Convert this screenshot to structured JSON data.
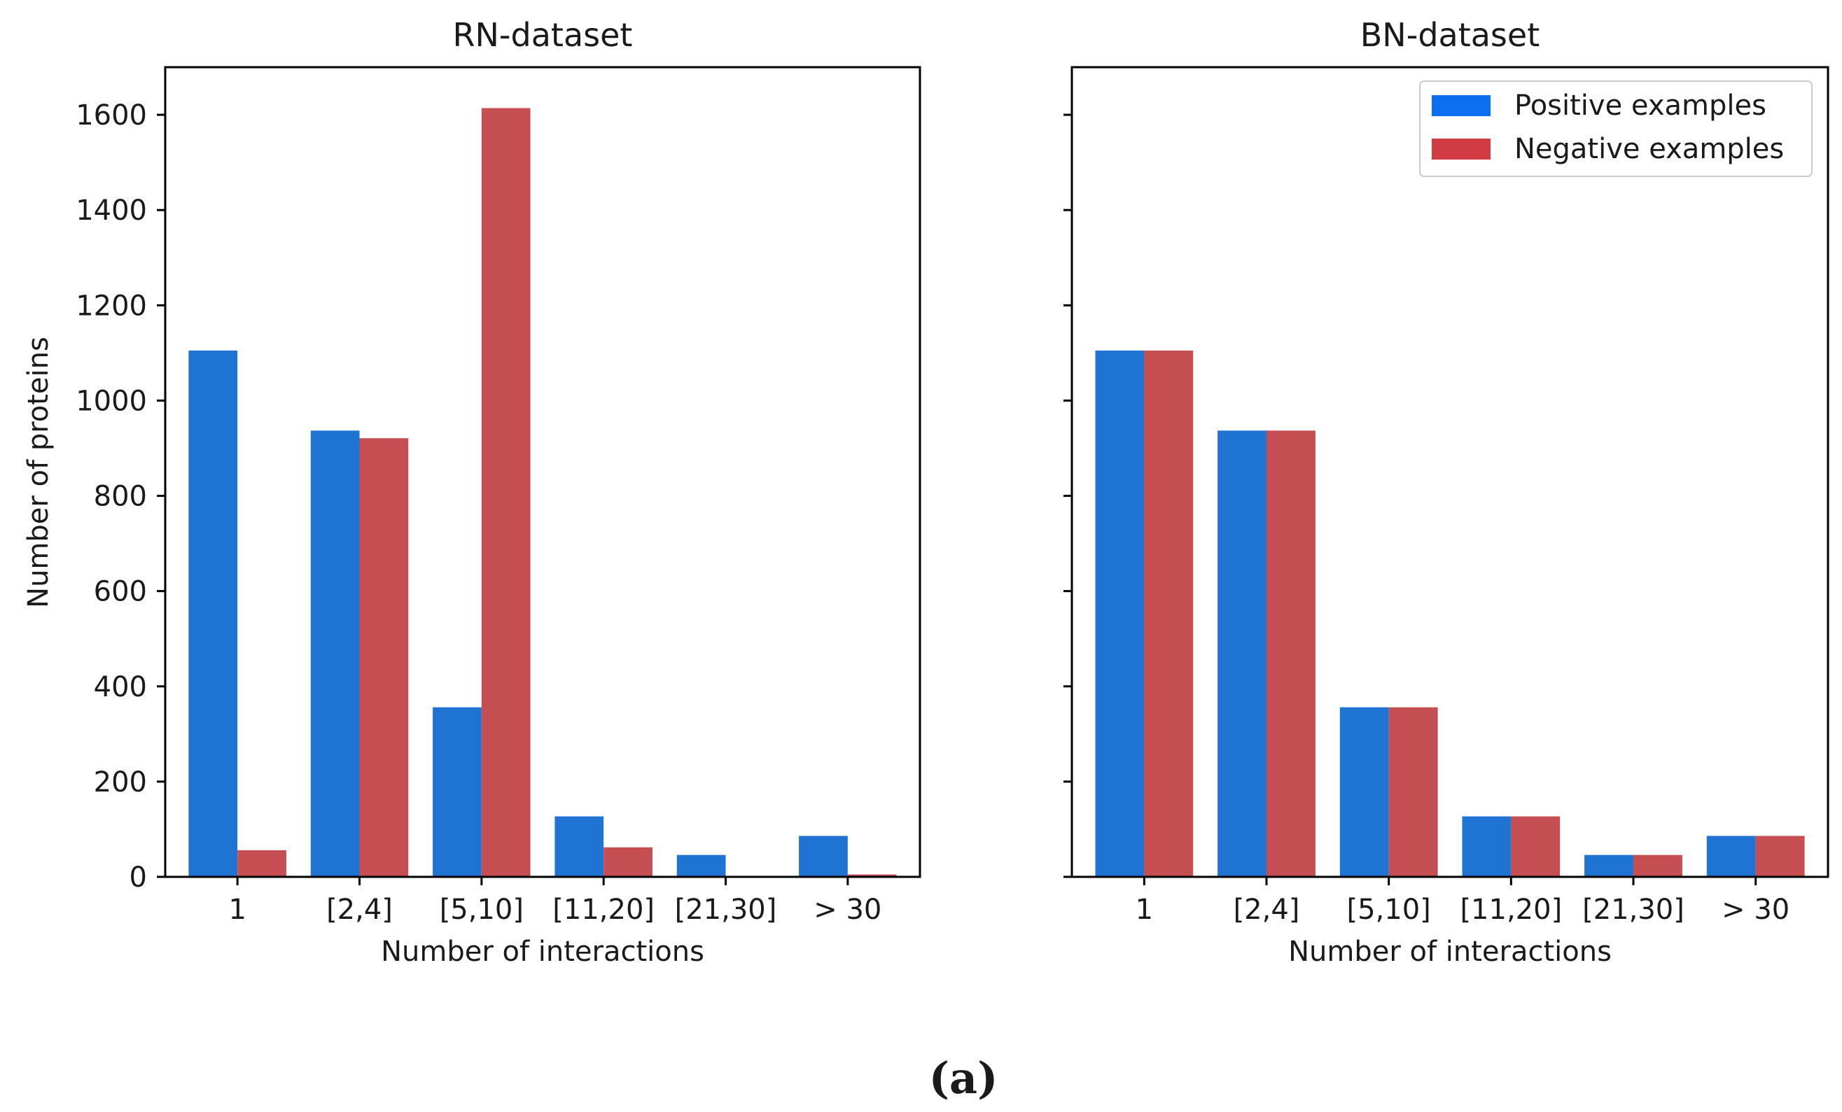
{
  "figure_label": "(a)",
  "legend": {
    "positive": "Positive examples",
    "negative": "Negative examples"
  },
  "colors": {
    "positive": "#1f73d2",
    "negative": "#c44e52",
    "legend_positive": "#0b6ff0",
    "legend_negative": "#d13b43"
  },
  "chart_data": [
    {
      "type": "bar",
      "title": "RN-dataset",
      "xlabel": "Number of interactions",
      "ylabel": "Number of proteins",
      "categories": [
        "1",
        "[2,4]",
        "[5,10]",
        "[11,20]",
        "[21,30]",
        "> 30"
      ],
      "series": [
        {
          "name": "Positive examples",
          "values": [
            1105,
            937,
            356,
            127,
            46,
            86
          ]
        },
        {
          "name": "Negative examples",
          "values": [
            56,
            921,
            1614,
            62,
            0,
            5
          ]
        }
      ],
      "ylim": [
        0,
        1700
      ],
      "yticks": [
        0,
        200,
        400,
        600,
        800,
        1000,
        1200,
        1400,
        1600
      ],
      "show_ytick_labels": true,
      "legend": false
    },
    {
      "type": "bar",
      "title": "BN-dataset",
      "xlabel": "Number of interactions",
      "ylabel": "",
      "categories": [
        "1",
        "[2,4]",
        "[5,10]",
        "[11,20]",
        "[21,30]",
        "> 30"
      ],
      "series": [
        {
          "name": "Positive examples",
          "values": [
            1105,
            937,
            356,
            127,
            46,
            86
          ]
        },
        {
          "name": "Negative examples",
          "values": [
            1105,
            937,
            356,
            127,
            46,
            86
          ]
        }
      ],
      "ylim": [
        0,
        1700
      ],
      "yticks": [
        0,
        200,
        400,
        600,
        800,
        1000,
        1200,
        1400,
        1600
      ],
      "show_ytick_labels": false,
      "legend": "top-right"
    }
  ]
}
